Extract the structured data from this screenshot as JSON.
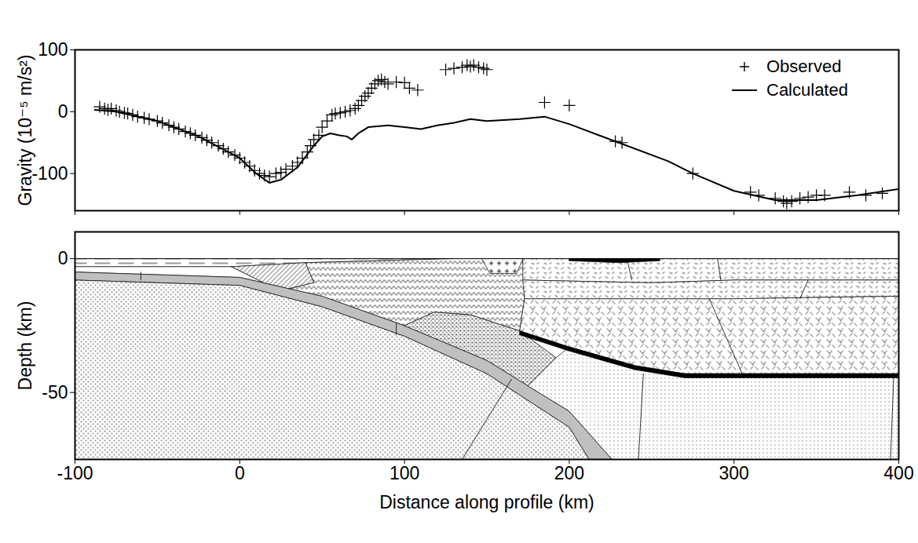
{
  "chart_data": [
    {
      "type": "line",
      "y_label": "Gravity (10⁻⁵ m/s²)",
      "xlim": [
        -100,
        400
      ],
      "xticks": [
        -100,
        0,
        100,
        200,
        300,
        400
      ],
      "ylim": [
        -160,
        100
      ],
      "yticks": [
        -100,
        0,
        100
      ],
      "tick_labels": "y",
      "legend": "top-right",
      "series": [
        {
          "name": "Observed",
          "type": "scatter",
          "marker": "plus",
          "color": "#000000",
          "x": [
            -85,
            -82,
            -80,
            -78,
            -75,
            -73,
            -70,
            -68,
            -65,
            -62,
            -58,
            -55,
            -50,
            -47,
            -43,
            -40,
            -37,
            -33,
            -30,
            -27,
            -23,
            -20,
            -17,
            -13,
            -10,
            -7,
            -3,
            0,
            3,
            6,
            9,
            12,
            15,
            18,
            22,
            25,
            28,
            32,
            35,
            38,
            41,
            43,
            45,
            48,
            50,
            53,
            56,
            58,
            61,
            64,
            67,
            70,
            72,
            74,
            76,
            78,
            80,
            82,
            84,
            86,
            88,
            90,
            95,
            100,
            103,
            108,
            125,
            130,
            135,
            138,
            140,
            142,
            145,
            148,
            150,
            185,
            200,
            228,
            232,
            275,
            310,
            315,
            325,
            330,
            332,
            335,
            340,
            345,
            350,
            355,
            370,
            380,
            390
          ],
          "values": [
            8,
            5,
            3,
            5,
            2,
            0,
            -2,
            -3,
            -5,
            -8,
            -10,
            -12,
            -15,
            -18,
            -22,
            -25,
            -28,
            -32,
            -35,
            -38,
            -42,
            -46,
            -50,
            -55,
            -60,
            -65,
            -70,
            -75,
            -82,
            -88,
            -95,
            -100,
            -103,
            -105,
            -100,
            -98,
            -93,
            -88,
            -82,
            -75,
            -65,
            -55,
            -45,
            -38,
            -25,
            -15,
            -5,
            -3,
            -2,
            0,
            2,
            5,
            10,
            18,
            25,
            30,
            38,
            45,
            50,
            52,
            48,
            45,
            48,
            47,
            38,
            35,
            68,
            70,
            72,
            75,
            73,
            75,
            72,
            70,
            68,
            15,
            10,
            -48,
            -50,
            -100,
            -130,
            -135,
            -140,
            -145,
            -148,
            -145,
            -140,
            -138,
            -135,
            -135,
            -130,
            -135,
            -132
          ]
        },
        {
          "name": "Calculated",
          "type": "line",
          "color": "#000000",
          "x": [
            -88,
            -75,
            -50,
            -25,
            0,
            10,
            18,
            25,
            35,
            45,
            50,
            55,
            60,
            65,
            68,
            72,
            78,
            90,
            100,
            110,
            120,
            130,
            140,
            150,
            170,
            185,
            200,
            230,
            260,
            275,
            300,
            325,
            350,
            375,
            400
          ],
          "values": [
            3,
            0,
            -15,
            -40,
            -75,
            -100,
            -115,
            -110,
            -90,
            -55,
            -40,
            -35,
            -38,
            -40,
            -45,
            -35,
            -25,
            -22,
            -25,
            -28,
            -22,
            -18,
            -12,
            -15,
            -12,
            -8,
            -20,
            -50,
            -80,
            -100,
            -128,
            -143,
            -143,
            -135,
            -125
          ]
        }
      ]
    },
    {
      "type": "cross-section",
      "x_label": "Distance along profile (km)",
      "y_label": "Depth (km)",
      "xlim": [
        -100,
        400
      ],
      "xticks": [
        -100,
        0,
        100,
        200,
        300,
        400
      ],
      "ylim": [
        -75,
        10
      ],
      "yticks": [
        -50,
        0
      ],
      "bodies": [
        {
          "color": "#ffffff",
          "points": [
            [
              -100,
              0
            ],
            [
              130,
              0
            ],
            [
              40,
              -1.5
            ],
            [
              -5,
              -3
            ],
            [
              -100,
              -3
            ]
          ]
        },
        {
          "color": "#ffffff",
          "points": [
            [
              -100,
              -3
            ],
            [
              -5,
              -3
            ],
            [
              15,
              -9.1
            ],
            [
              0,
              -7
            ],
            [
              -100,
              -5
            ]
          ]
        },
        {
          "color": "#c0c0c0",
          "points": [
            [
              -100,
              -5
            ],
            [
              0,
              -7
            ],
            [
              50,
              -14
            ],
            [
              100,
              -25
            ],
            [
              150,
              -38
            ],
            [
              200,
              -57
            ],
            [
              226,
              -75
            ],
            [
              212,
              -75
            ],
            [
              200,
              -63
            ],
            [
              150,
              -43
            ],
            [
              100,
              -29
            ],
            [
              50,
              -18
            ],
            [
              0,
              -10
            ],
            [
              -100,
              -8
            ]
          ]
        },
        {
          "color": "#ffffff",
          "points": [
            [
              -100,
              -8
            ],
            [
              0,
              -10
            ],
            [
              50,
              -18
            ],
            [
              100,
              -29
            ],
            [
              150,
              -43
            ],
            [
              200,
              -63
            ],
            [
              212,
              -75
            ],
            [
              -100,
              -75
            ]
          ]
        },
        {
          "color": "#ffffff",
          "points": [
            [
              -5,
              -3
            ],
            [
              40,
              -1.5
            ],
            [
              45,
              -9
            ],
            [
              30,
              -11.2
            ],
            [
              15,
              -9.1
            ]
          ]
        },
        {
          "color": "#ffffff",
          "points": [
            [
              40,
              -1.5
            ],
            [
              130,
              0
            ],
            [
              172,
              0
            ],
            [
              173,
              -15
            ],
            [
              170,
              -27
            ],
            [
              140,
              -21
            ],
            [
              118,
              -20
            ],
            [
              100,
              -25
            ],
            [
              50,
              -14
            ],
            [
              30,
              -11.2
            ],
            [
              45,
              -9
            ]
          ]
        },
        {
          "color": "#ffffff",
          "points": [
            [
              100,
              -25
            ],
            [
              118,
              -20
            ],
            [
              140,
              -21
            ],
            [
              170,
              -27
            ],
            [
              192,
              -37
            ],
            [
              175,
              -47.5
            ],
            [
              150,
              -38
            ],
            [
              125,
              -31.5
            ]
          ]
        },
        {
          "color": "#ffffff",
          "points": [
            [
              147,
              0
            ],
            [
              172,
              0
            ],
            [
              168,
              -5.5
            ],
            [
              152,
              -5.5
            ]
          ]
        },
        {
          "color": "#ffffff",
          "points": [
            [
              172,
              0
            ],
            [
              400,
              0
            ],
            [
              400,
              -8
            ],
            [
              300,
              -8
            ],
            [
              250,
              -9
            ],
            [
              172,
              -8
            ]
          ]
        },
        {
          "color": "#ffffff",
          "points": [
            [
              172,
              -8
            ],
            [
              250,
              -9
            ],
            [
              300,
              -8
            ],
            [
              400,
              -8
            ],
            [
              400,
              -14
            ],
            [
              300,
              -15
            ],
            [
              173,
              -15
            ]
          ]
        },
        {
          "color": "#ffffff",
          "points": [
            [
              173,
              -15
            ],
            [
              300,
              -15
            ],
            [
              400,
              -14
            ],
            [
              400,
              -43
            ],
            [
              270,
              -43
            ],
            [
              240,
              -40
            ],
            [
              200,
              -33
            ],
            [
              170,
              -27
            ]
          ]
        },
        {
          "color": "#ffffff",
          "points": [
            [
              175,
              -47.5
            ],
            [
              192,
              -37
            ],
            [
              200,
              -33
            ],
            [
              240,
              -40
            ],
            [
              270,
              -43
            ],
            [
              400,
              -43
            ],
            [
              400,
              -75
            ],
            [
              226,
              -75
            ],
            [
              200,
              -57
            ]
          ]
        },
        {
          "color": "#000000",
          "points": [
            [
              170,
              -27
            ],
            [
              200,
              -33
            ],
            [
              240,
              -40
            ],
            [
              270,
              -43
            ],
            [
              400,
              -43
            ],
            [
              400,
              -44.5
            ],
            [
              270,
              -44.5
            ],
            [
              240,
              -41.5
            ],
            [
              200,
              -34.5
            ],
            [
              170,
              -28.5
            ]
          ]
        },
        {
          "color": "#000000",
          "points": [
            [
              200,
              0
            ],
            [
              255,
              0
            ],
            [
              255,
              -0.8
            ],
            [
              230,
              -1.5
            ],
            [
              200,
              -0.8
            ]
          ]
        }
      ],
      "lines": [
        {
          "color": "#000000",
          "points": [
            [
              -100,
              0
            ],
            [
              400,
              0
            ]
          ]
        },
        {
          "color": "#000000",
          "points": [
            [
              -60,
              -5
            ],
            [
              -60,
              -8
            ]
          ]
        },
        {
          "color": "#000000",
          "points": [
            [
              95,
              -24
            ],
            [
              95,
              -28.5
            ]
          ]
        },
        {
          "color": "#000000",
          "points": [
            [
              165,
              -45
            ],
            [
              135,
              -75
            ]
          ]
        },
        {
          "color": "#000000",
          "points": [
            [
              235,
              0
            ],
            [
              238,
              -8
            ]
          ]
        },
        {
          "color": "#000000",
          "points": [
            [
              290,
              0
            ],
            [
              292,
              -8
            ]
          ]
        },
        {
          "color": "#000000",
          "points": [
            [
              345,
              -8
            ],
            [
              340,
              -15
            ]
          ]
        },
        {
          "color": "#000000",
          "points": [
            [
              285,
              -15
            ],
            [
              305,
              -43
            ]
          ]
        },
        {
          "color": "#000000",
          "points": [
            [
              245,
              -43
            ],
            [
              242,
              -75
            ]
          ]
        },
        {
          "color": "#000000",
          "points": [
            [
              397,
              -43
            ],
            [
              395,
              -75
            ]
          ]
        }
      ]
    }
  ]
}
